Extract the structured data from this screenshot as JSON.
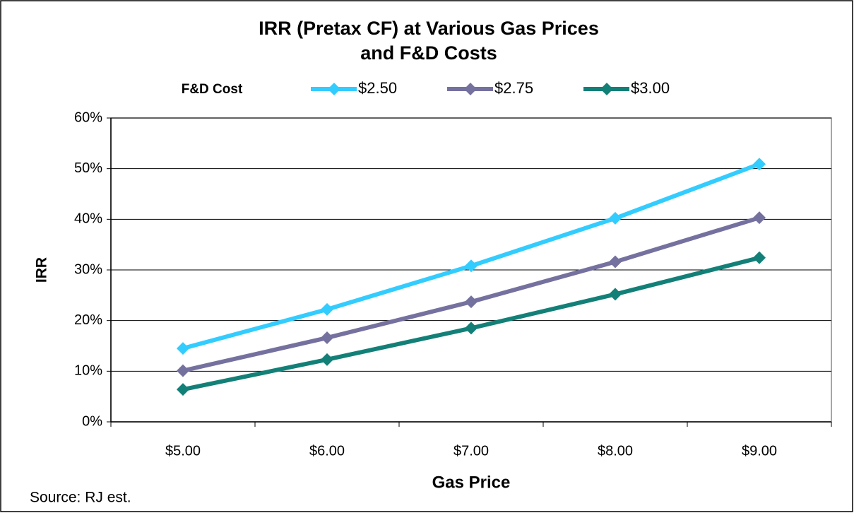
{
  "chart_data": {
    "type": "line",
    "title": [
      "IRR (Pretax CF) at Various Gas Prices",
      "and F&D Costs"
    ],
    "legend_title": "F&D Cost",
    "xlabel": "Gas Price",
    "ylabel": "IRR",
    "note": "Source: RJ est.",
    "categories": [
      "$5.00",
      "$6.00",
      "$7.00",
      "$8.00",
      "$9.00"
    ],
    "series": [
      {
        "name": "$2.50",
        "color": "#33ccff",
        "values": [
          14.5,
          22.2,
          30.8,
          40.2,
          50.9
        ]
      },
      {
        "name": "$2.75",
        "color": "#75719f",
        "values": [
          10.1,
          16.6,
          23.7,
          31.6,
          40.3
        ]
      },
      {
        "name": "$3.00",
        "color": "#138078",
        "values": [
          6.4,
          12.3,
          18.5,
          25.2,
          32.4
        ]
      }
    ],
    "ylim": [
      0,
      60
    ],
    "yticks": [
      {
        "value": 0,
        "label": "0%"
      },
      {
        "value": 10,
        "label": "10%"
      },
      {
        "value": 20,
        "label": "20%"
      },
      {
        "value": 30,
        "label": "30%"
      },
      {
        "value": 40,
        "label": "40%"
      },
      {
        "value": 50,
        "label": "50%"
      },
      {
        "value": 60,
        "label": "60%"
      }
    ],
    "grid": true,
    "legend": "top"
  }
}
